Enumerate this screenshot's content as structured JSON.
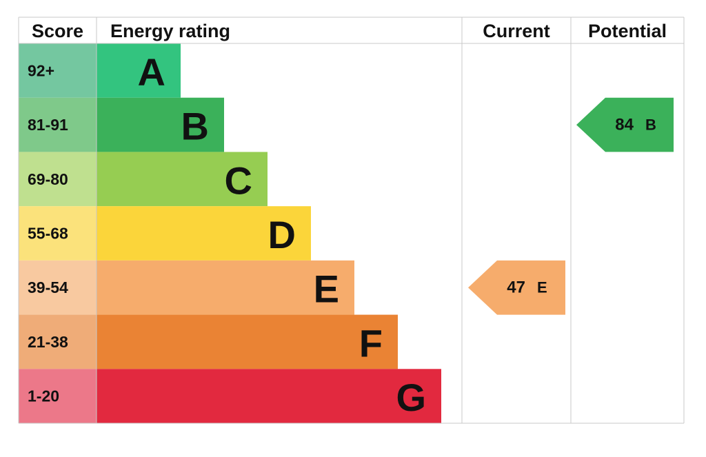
{
  "chart_data": {
    "type": "epc",
    "headers": [
      "Score",
      "Energy rating",
      "Current",
      "Potential"
    ],
    "bands": [
      {
        "score": "92+",
        "letter": "A",
        "color": "#33c47f",
        "score_color": "#74c7a0"
      },
      {
        "score": "81-91",
        "letter": "B",
        "color": "#3bb15a",
        "score_color": "#7fc98a"
      },
      {
        "score": "69-80",
        "letter": "C",
        "color": "#96cd52",
        "score_color": "#bfe08f"
      },
      {
        "score": "55-68",
        "letter": "D",
        "color": "#fbd53a",
        "score_color": "#fbe27b"
      },
      {
        "score": "39-54",
        "letter": "E",
        "color": "#f6ac6c",
        "score_color": "#f8c9a0"
      },
      {
        "score": "21-38",
        "letter": "F",
        "color": "#ea8334",
        "score_color": "#efac78"
      },
      {
        "score": "1-20",
        "letter": "G",
        "color": "#e2293f",
        "score_color": "#ec7889"
      }
    ],
    "current": {
      "value": 47,
      "letter": "E"
    },
    "potential": {
      "value": 84,
      "letter": "B"
    }
  }
}
